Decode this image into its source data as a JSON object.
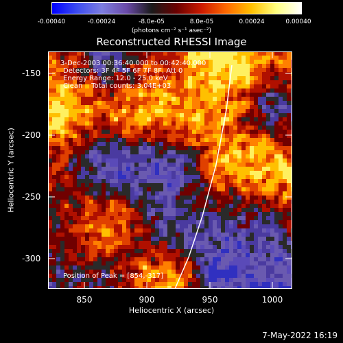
{
  "colorbar": {
    "colors": [
      "#0000ff",
      "#3c4cf0",
      "#7d7de0",
      "#6a4aa8",
      "#1a1a1a",
      "#6a0000",
      "#cc1a00",
      "#ff6a00",
      "#ffc000",
      "#ffff80",
      "#ffffff"
    ],
    "tick_labels": [
      "-0.00040",
      "-0.00024",
      "-8.0e-05",
      "8.0e-05",
      "0.00024",
      "0.00040"
    ],
    "units": "(photons cm⁻² s⁻¹ asec⁻²)"
  },
  "title": "Reconstructed RHESSI Image",
  "overlay": {
    "line1": "3-Dec-2003 00:36:40.000 to 00:42:40.000",
    "line2": "Detectors: 3F 4F 5F 6F 7F 8F, Att 0",
    "line3": "Energy Range: 12.0 - 25.0 keV",
    "line4": "Clean    Total counts: 3.04E+03",
    "peak": "Position of Peak = [854,-317]"
  },
  "axes": {
    "x_label": "Heliocentric X (arcsec)",
    "y_label": "Heliocentric Y (arcsec)",
    "x_ticks": [
      "850",
      "900",
      "950",
      "1000"
    ],
    "y_ticks": [
      "-150",
      "-200",
      "-250",
      "-300"
    ],
    "x_range": [
      825,
      1020
    ],
    "y_range": [
      -325,
      -133
    ]
  },
  "footer": "7-May-2022 16:19"
}
